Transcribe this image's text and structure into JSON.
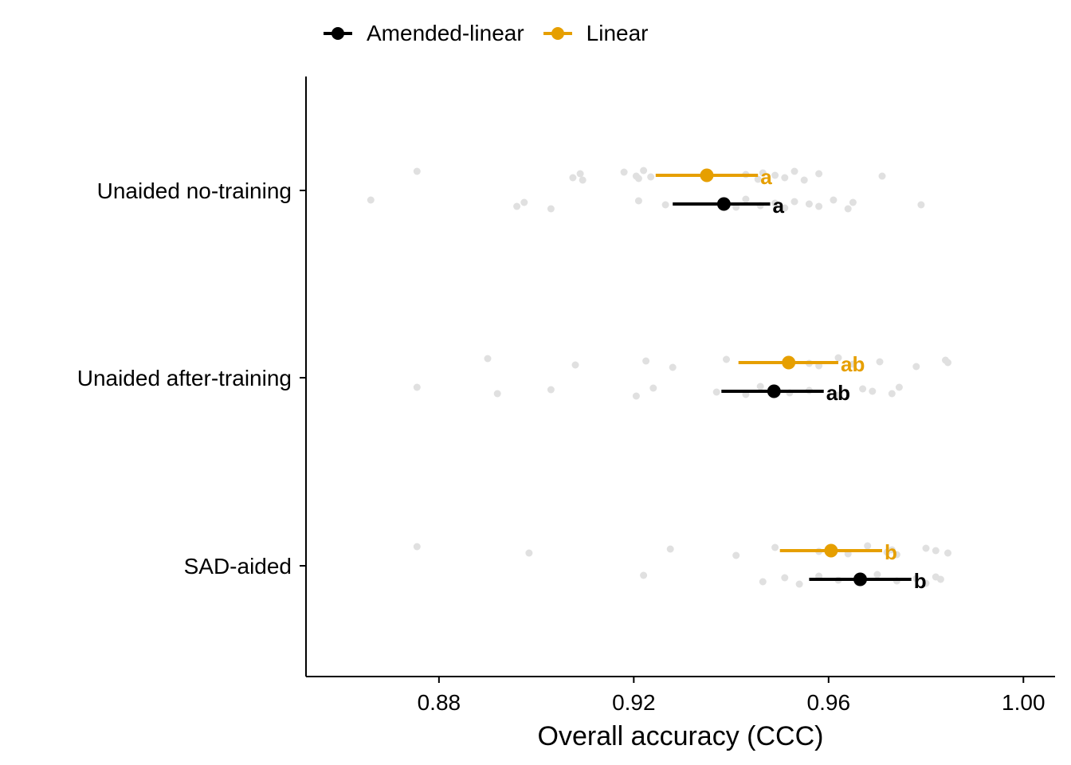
{
  "chart_data": {
    "type": "scatter",
    "xlabel": "Overall accuracy (CCC)",
    "ylabel": "",
    "xlim": [
      0.8527,
      1.0065
    ],
    "xticks": [
      "0.88",
      "0.92",
      "0.96",
      "1.00"
    ],
    "categories": [
      "Unaided no-training",
      "Unaided after-training",
      "SAD-aided"
    ],
    "legend_position": "top",
    "grid": false,
    "series": [
      {
        "name": "Amended-linear",
        "color": "#000000",
        "estimates": [
          0.9385,
          0.9488,
          0.9665
        ],
        "ci_low": [
          0.928,
          0.938,
          0.956
        ],
        "ci_high": [
          0.948,
          0.959,
          0.977
        ],
        "letters": [
          "a",
          "ab",
          "b"
        ]
      },
      {
        "name": "Linear",
        "color": "#E69F00",
        "estimates": [
          0.935,
          0.9518,
          0.9605
        ],
        "ci_low": [
          0.9245,
          0.9415,
          0.95
        ],
        "ci_high": [
          0.9455,
          0.962,
          0.971
        ],
        "letters": [
          "a",
          "ab",
          "b"
        ]
      }
    ],
    "raw_points": {
      "color": "#E0E0E0",
      "Linear": [
        [
          0.8755,
          0.9075,
          0.909,
          0.9095,
          0.918,
          0.9205,
          0.921,
          0.922,
          0.9235,
          0.943,
          0.9455,
          0.9465,
          0.949,
          0.951,
          0.953,
          0.955,
          0.958,
          0.971
        ],
        [
          0.89,
          0.908,
          0.9225,
          0.928,
          0.939,
          0.956,
          0.958,
          0.962,
          0.965,
          0.9705,
          0.978,
          0.984,
          0.9845
        ],
        [
          0.8755,
          0.8985,
          0.9275,
          0.941,
          0.949,
          0.958,
          0.964,
          0.968,
          0.972,
          0.973,
          0.974,
          0.98,
          0.982,
          0.9845
        ]
      ],
      "Amended-linear": [
        [
          0.866,
          0.896,
          0.8975,
          0.903,
          0.921,
          0.9265,
          0.941,
          0.943,
          0.946,
          0.949,
          0.951,
          0.953,
          0.956,
          0.958,
          0.961,
          0.964,
          0.965,
          0.979
        ],
        [
          0.8755,
          0.892,
          0.903,
          0.9205,
          0.924,
          0.937,
          0.943,
          0.946,
          0.952,
          0.956,
          0.962,
          0.967,
          0.969,
          0.973,
          0.9745
        ],
        [
          0.922,
          0.9465,
          0.951,
          0.954,
          0.958,
          0.962,
          0.966,
          0.97,
          0.974,
          0.978,
          0.98,
          0.982,
          0.983
        ]
      ]
    }
  }
}
